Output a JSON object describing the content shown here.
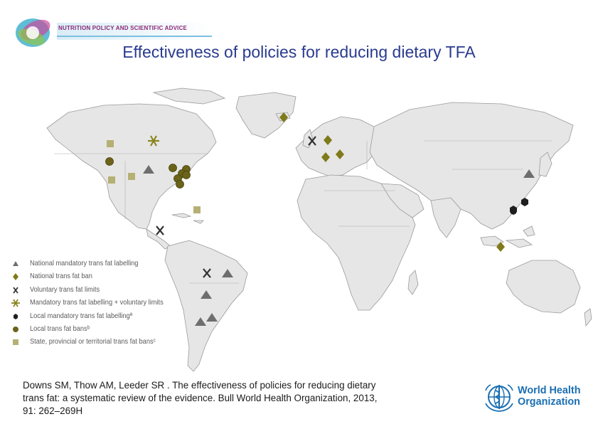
{
  "header": {
    "banner_text": "NUTRITION POLICY AND SCIENTIFIC ADVICE",
    "title": "Effectiveness of policies for reducing dietary TFA"
  },
  "legend": [
    {
      "symbol": "triangle-icon",
      "color": "#6e6e6e",
      "label": "National mandatory trans fat labelling"
    },
    {
      "symbol": "diamond-icon",
      "color": "#7f7a1a",
      "label": "National trans fat ban"
    },
    {
      "symbol": "x-icon",
      "color": "#333333",
      "label": "Voluntary trans fat limits"
    },
    {
      "symbol": "asterisk-icon",
      "color": "#8a8520",
      "label": "Mandatory trans fat labelling + voluntary limits"
    },
    {
      "symbol": "hexagon-icon",
      "color": "#1f1f1f",
      "label": "Local mandatory trans fat labellingª"
    },
    {
      "symbol": "circle-icon",
      "color": "#6b6318",
      "label": "Local trans fat bansᵇ"
    },
    {
      "symbol": "square-icon",
      "color": "#b5b074",
      "label": "State, provincial or territorial trans fat bansᶜ"
    }
  ],
  "citation": {
    "line1": "Downs SM, Thow AM, Leeder SR . The effectiveness of policies for reducing dietary",
    "line2": "trans fat: a systematic review of the evidence.  Bull World Health Organization, 2013,",
    "line3": "91: 262–269H"
  },
  "who": {
    "line1": "World Health",
    "line2": "Organization"
  },
  "colors": {
    "title": "#2a3b8f",
    "land": "#e6e6e6",
    "border": "#9a9a9a",
    "who_blue": "#1a6fb3"
  }
}
